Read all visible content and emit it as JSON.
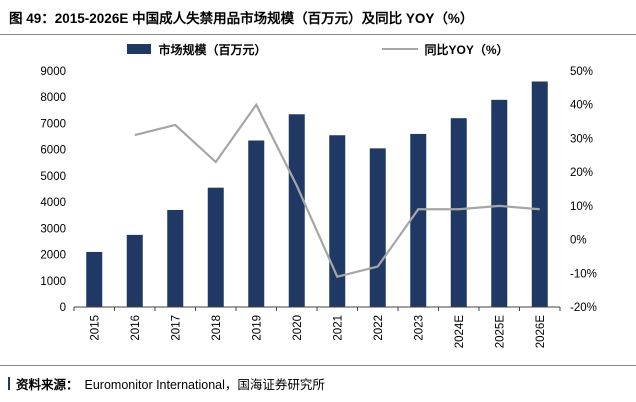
{
  "title": "图 49：2015-2026E 中国成人失禁用品市场规模（百万元）及同比 YOY（%）",
  "source": {
    "label": "资料来源：",
    "text": "Euromonitor International，国海证券研究所"
  },
  "chart_data": {
    "type": "bar",
    "subtype": "combo-bar-line",
    "categories": [
      "2015",
      "2016",
      "2017",
      "2018",
      "2019",
      "2020",
      "2021",
      "2022",
      "2023",
      "2024E",
      "2025E",
      "2026E"
    ],
    "series": [
      {
        "name": "市场规模（百万元）",
        "type": "bar",
        "axis": "left",
        "color": "#1F3864",
        "values": [
          2100,
          2750,
          3700,
          4550,
          6350,
          7350,
          6550,
          6050,
          6600,
          7200,
          7900,
          8600
        ]
      },
      {
        "name": "同比YOY（%）",
        "type": "line",
        "axis": "right",
        "color": "#A6A6A6",
        "values": [
          null,
          31,
          34,
          23,
          40,
          16,
          -11,
          -8,
          9,
          9,
          10,
          9
        ]
      }
    ],
    "left_axis": {
      "min": 0,
      "max": 9000,
      "step": 1000
    },
    "right_axis": {
      "min": -20,
      "max": 50,
      "step": 10,
      "suffix": "%"
    },
    "grid": "off",
    "legend_position": "top"
  }
}
